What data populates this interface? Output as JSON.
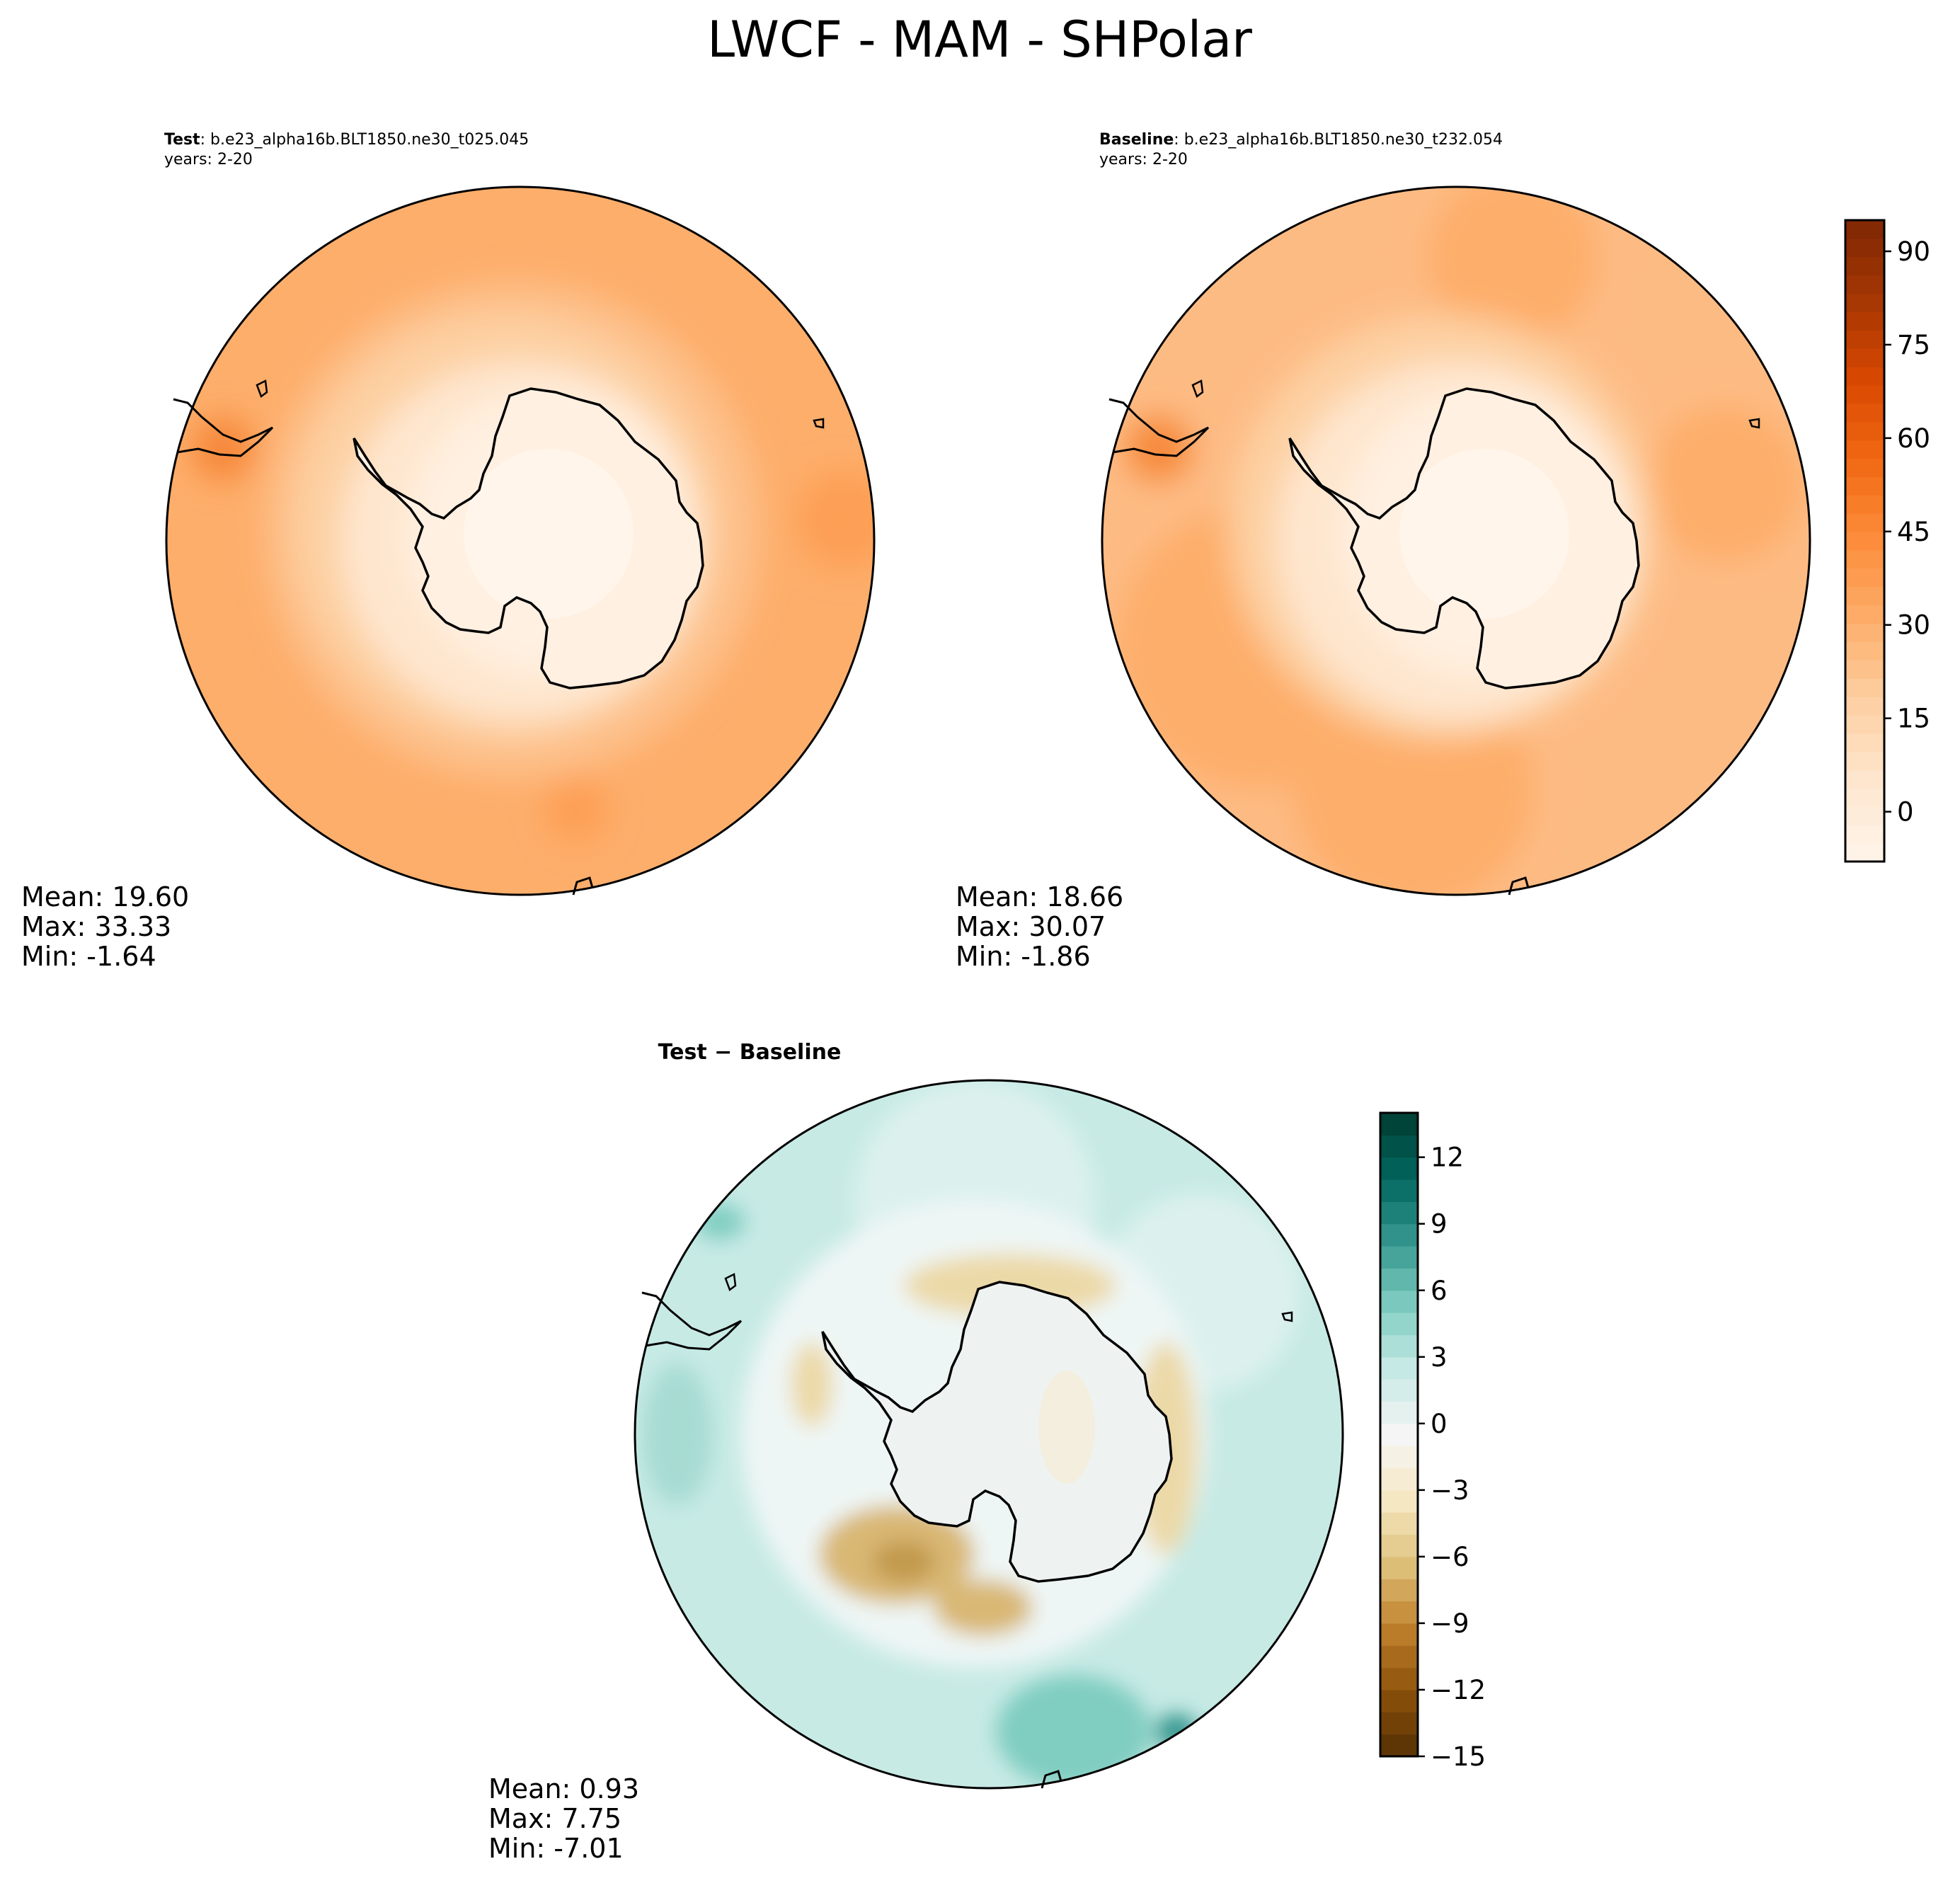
{
  "figure_title": "LWCF - MAM - SHPolar",
  "colors": {
    "seq_colormap": [
      "#fff5eb",
      "#fee6ce",
      "#fdd0a2",
      "#fdae6b",
      "#fd8d3c",
      "#f16913",
      "#d94801",
      "#a63603",
      "#7f2704"
    ],
    "div_colormap": [
      "#543005",
      "#8c510a",
      "#bf812d",
      "#dfc27d",
      "#f6e8c3",
      "#f5f5f5",
      "#c7eae5",
      "#80cdc1",
      "#35978f",
      "#01665e",
      "#003c30"
    ],
    "land_outline": "#000000"
  },
  "chart_data": [
    {
      "type": "heatmap",
      "projection": "south-polar-stereographic",
      "panel": "test",
      "title_bold": "Test",
      "title_rest": ": b.e23_alpha16b.BLT1850.ne30_t025.045",
      "years": "years: 2-20",
      "stats": {
        "mean": "Mean: 19.60",
        "max": "Max: 33.33",
        "min": "Min: -1.64"
      },
      "field_summary": {
        "ocean_typical": 28,
        "antarctic_interior": 2
      }
    },
    {
      "type": "heatmap",
      "projection": "south-polar-stereographic",
      "panel": "baseline",
      "title_bold": "Baseline",
      "title_rest": ": b.e23_alpha16b.BLT1850.ne30_t232.054",
      "years": "years: 2-20",
      "stats": {
        "mean": "Mean: 18.66",
        "max": "Max: 30.07",
        "min": "Min: -1.86"
      },
      "colorbar": {
        "range": [
          -8,
          95
        ],
        "ticks": [
          0,
          15,
          30,
          45,
          60,
          75,
          90
        ],
        "tick_labels": [
          "0",
          "15",
          "30",
          "45",
          "60",
          "75",
          "90"
        ],
        "levels": 35
      }
    },
    {
      "type": "heatmap",
      "projection": "south-polar-stereographic",
      "panel": "difference",
      "title": "Test − Baseline",
      "stats": {
        "mean": "Mean:  0.93",
        "max": "Max:  7.75",
        "min": "Min: -7.01"
      },
      "colorbar": {
        "range": [
          -15,
          14
        ],
        "ticks": [
          -15,
          -12,
          -9,
          -6,
          -3,
          0,
          3,
          6,
          9,
          12
        ],
        "tick_labels": [
          "−15",
          "−12",
          "−9",
          "−6",
          "−3",
          "0",
          "3",
          "6",
          "9",
          "12"
        ],
        "levels": 29
      }
    }
  ]
}
